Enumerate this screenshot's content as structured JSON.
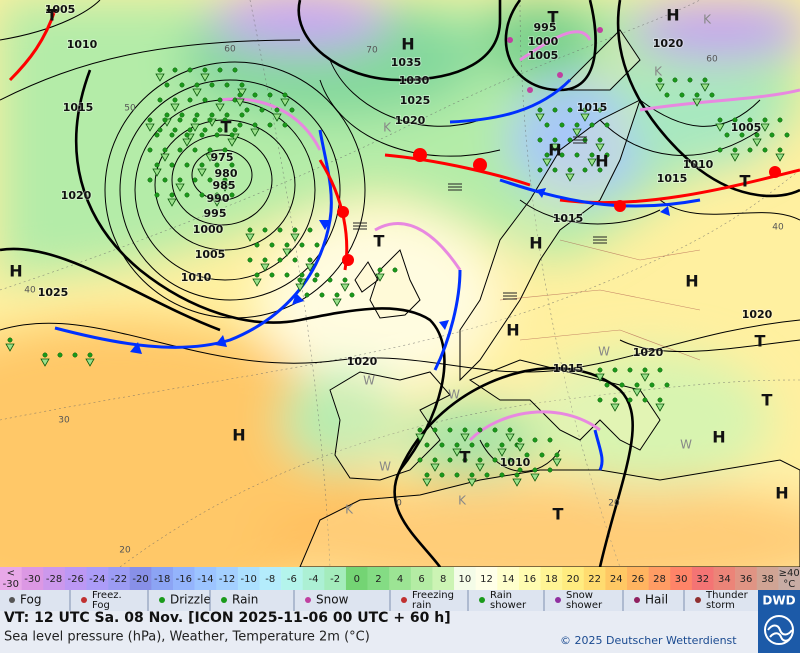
{
  "map": {
    "isobar_labels": [
      1005,
      1010,
      1015,
      1020,
      1025,
      975,
      980,
      985,
      990,
      995,
      1000,
      1005,
      1010,
      1035,
      1030,
      1025,
      1020,
      995,
      1000,
      1005,
      1015,
      1005,
      1010,
      1015,
      1015,
      1020,
      1020,
      1020,
      1015,
      1010,
      1020
    ],
    "isotherm_labels": [
      60,
      50,
      40,
      30,
      20,
      70,
      60,
      40,
      20,
      0
    ],
    "centers": [
      "T",
      "H",
      "T",
      "H",
      "T",
      "H",
      "H",
      "T",
      "H",
      "H",
      "H",
      "H",
      "T",
      "T",
      "H",
      "H",
      "T",
      "T",
      "H",
      "T"
    ],
    "air_mass": [
      "K",
      "K",
      "W",
      "W",
      "W",
      "W",
      "W",
      "K",
      "K",
      "K"
    ]
  },
  "temperature_scale": [
    {
      "text": [
        "<",
        "-30"
      ],
      "color": "#e8a8e8"
    },
    {
      "text": "-30",
      "color": "#dc98e4"
    },
    {
      "text": "-28",
      "color": "#cc98ec"
    },
    {
      "text": "-26",
      "color": "#bc98f4"
    },
    {
      "text": "-24",
      "color": "#ac9cf8"
    },
    {
      "text": "-22",
      "color": "#9c9cf4"
    },
    {
      "text": "-20",
      "color": "#8890e8"
    },
    {
      "text": "-18",
      "color": "#8ca4f4"
    },
    {
      "text": "-16",
      "color": "#94b4fc"
    },
    {
      "text": "-14",
      "color": "#9cc4ff"
    },
    {
      "text": "-12",
      "color": "#a4d0ff"
    },
    {
      "text": "-10",
      "color": "#ace0ff"
    },
    {
      "text": "-8",
      "color": "#b4ecfc"
    },
    {
      "text": "-6",
      "color": "#b4f4ec"
    },
    {
      "text": "-4",
      "color": "#acf0d4"
    },
    {
      "text": "-2",
      "color": "#a4ecbc"
    },
    {
      "text": "0",
      "color": "#74d474"
    },
    {
      "text": "2",
      "color": "#84dc84"
    },
    {
      "text": "4",
      "color": "#9ce494"
    },
    {
      "text": "6",
      "color": "#b4eca4"
    },
    {
      "text": "8",
      "color": "#ccf4b4"
    },
    {
      "text": "10",
      "color": "#f4fce8"
    },
    {
      "text": "12",
      "color": "#ffffe8"
    },
    {
      "text": "14",
      "color": "#ffffcc"
    },
    {
      "text": "16",
      "color": "#fffcb0"
    },
    {
      "text": "18",
      "color": "#fff494"
    },
    {
      "text": "20",
      "color": "#ffec80"
    },
    {
      "text": "22",
      "color": "#ffdc70"
    },
    {
      "text": "24",
      "color": "#ffc864"
    },
    {
      "text": "26",
      "color": "#ffb460"
    },
    {
      "text": "28",
      "color": "#ff9c64"
    },
    {
      "text": "30",
      "color": "#ff8468"
    },
    {
      "text": "32",
      "color": "#f47474"
    },
    {
      "text": "34",
      "color": "#ec8478"
    },
    {
      "text": "36",
      "color": "#e09484"
    },
    {
      "text": "38",
      "color": "#d0a494"
    },
    {
      "text": [
        "≥40",
        "°C"
      ],
      "color": "#c8aca4"
    }
  ],
  "weather_legend": [
    "Fog",
    [
      "Freez.",
      "Fog"
    ],
    "Drizzle",
    "Rain",
    "Snow",
    [
      "Freezing",
      "rain"
    ],
    [
      "Rain",
      "shower"
    ],
    [
      "Snow",
      "shower"
    ],
    "Hail",
    [
      "Thunder",
      "storm"
    ]
  ],
  "footer": {
    "valid_time": "VT: 12 UTC Sa.  08 Nov. [ICON 2025-11-06  00 UTC + 60 h]",
    "subtitle": "Sea level pressure (hPa), Weather, Temperature 2m (°C)",
    "copyright": "© 2025 Deutscher Wetterdienst",
    "logo": "DWD"
  }
}
